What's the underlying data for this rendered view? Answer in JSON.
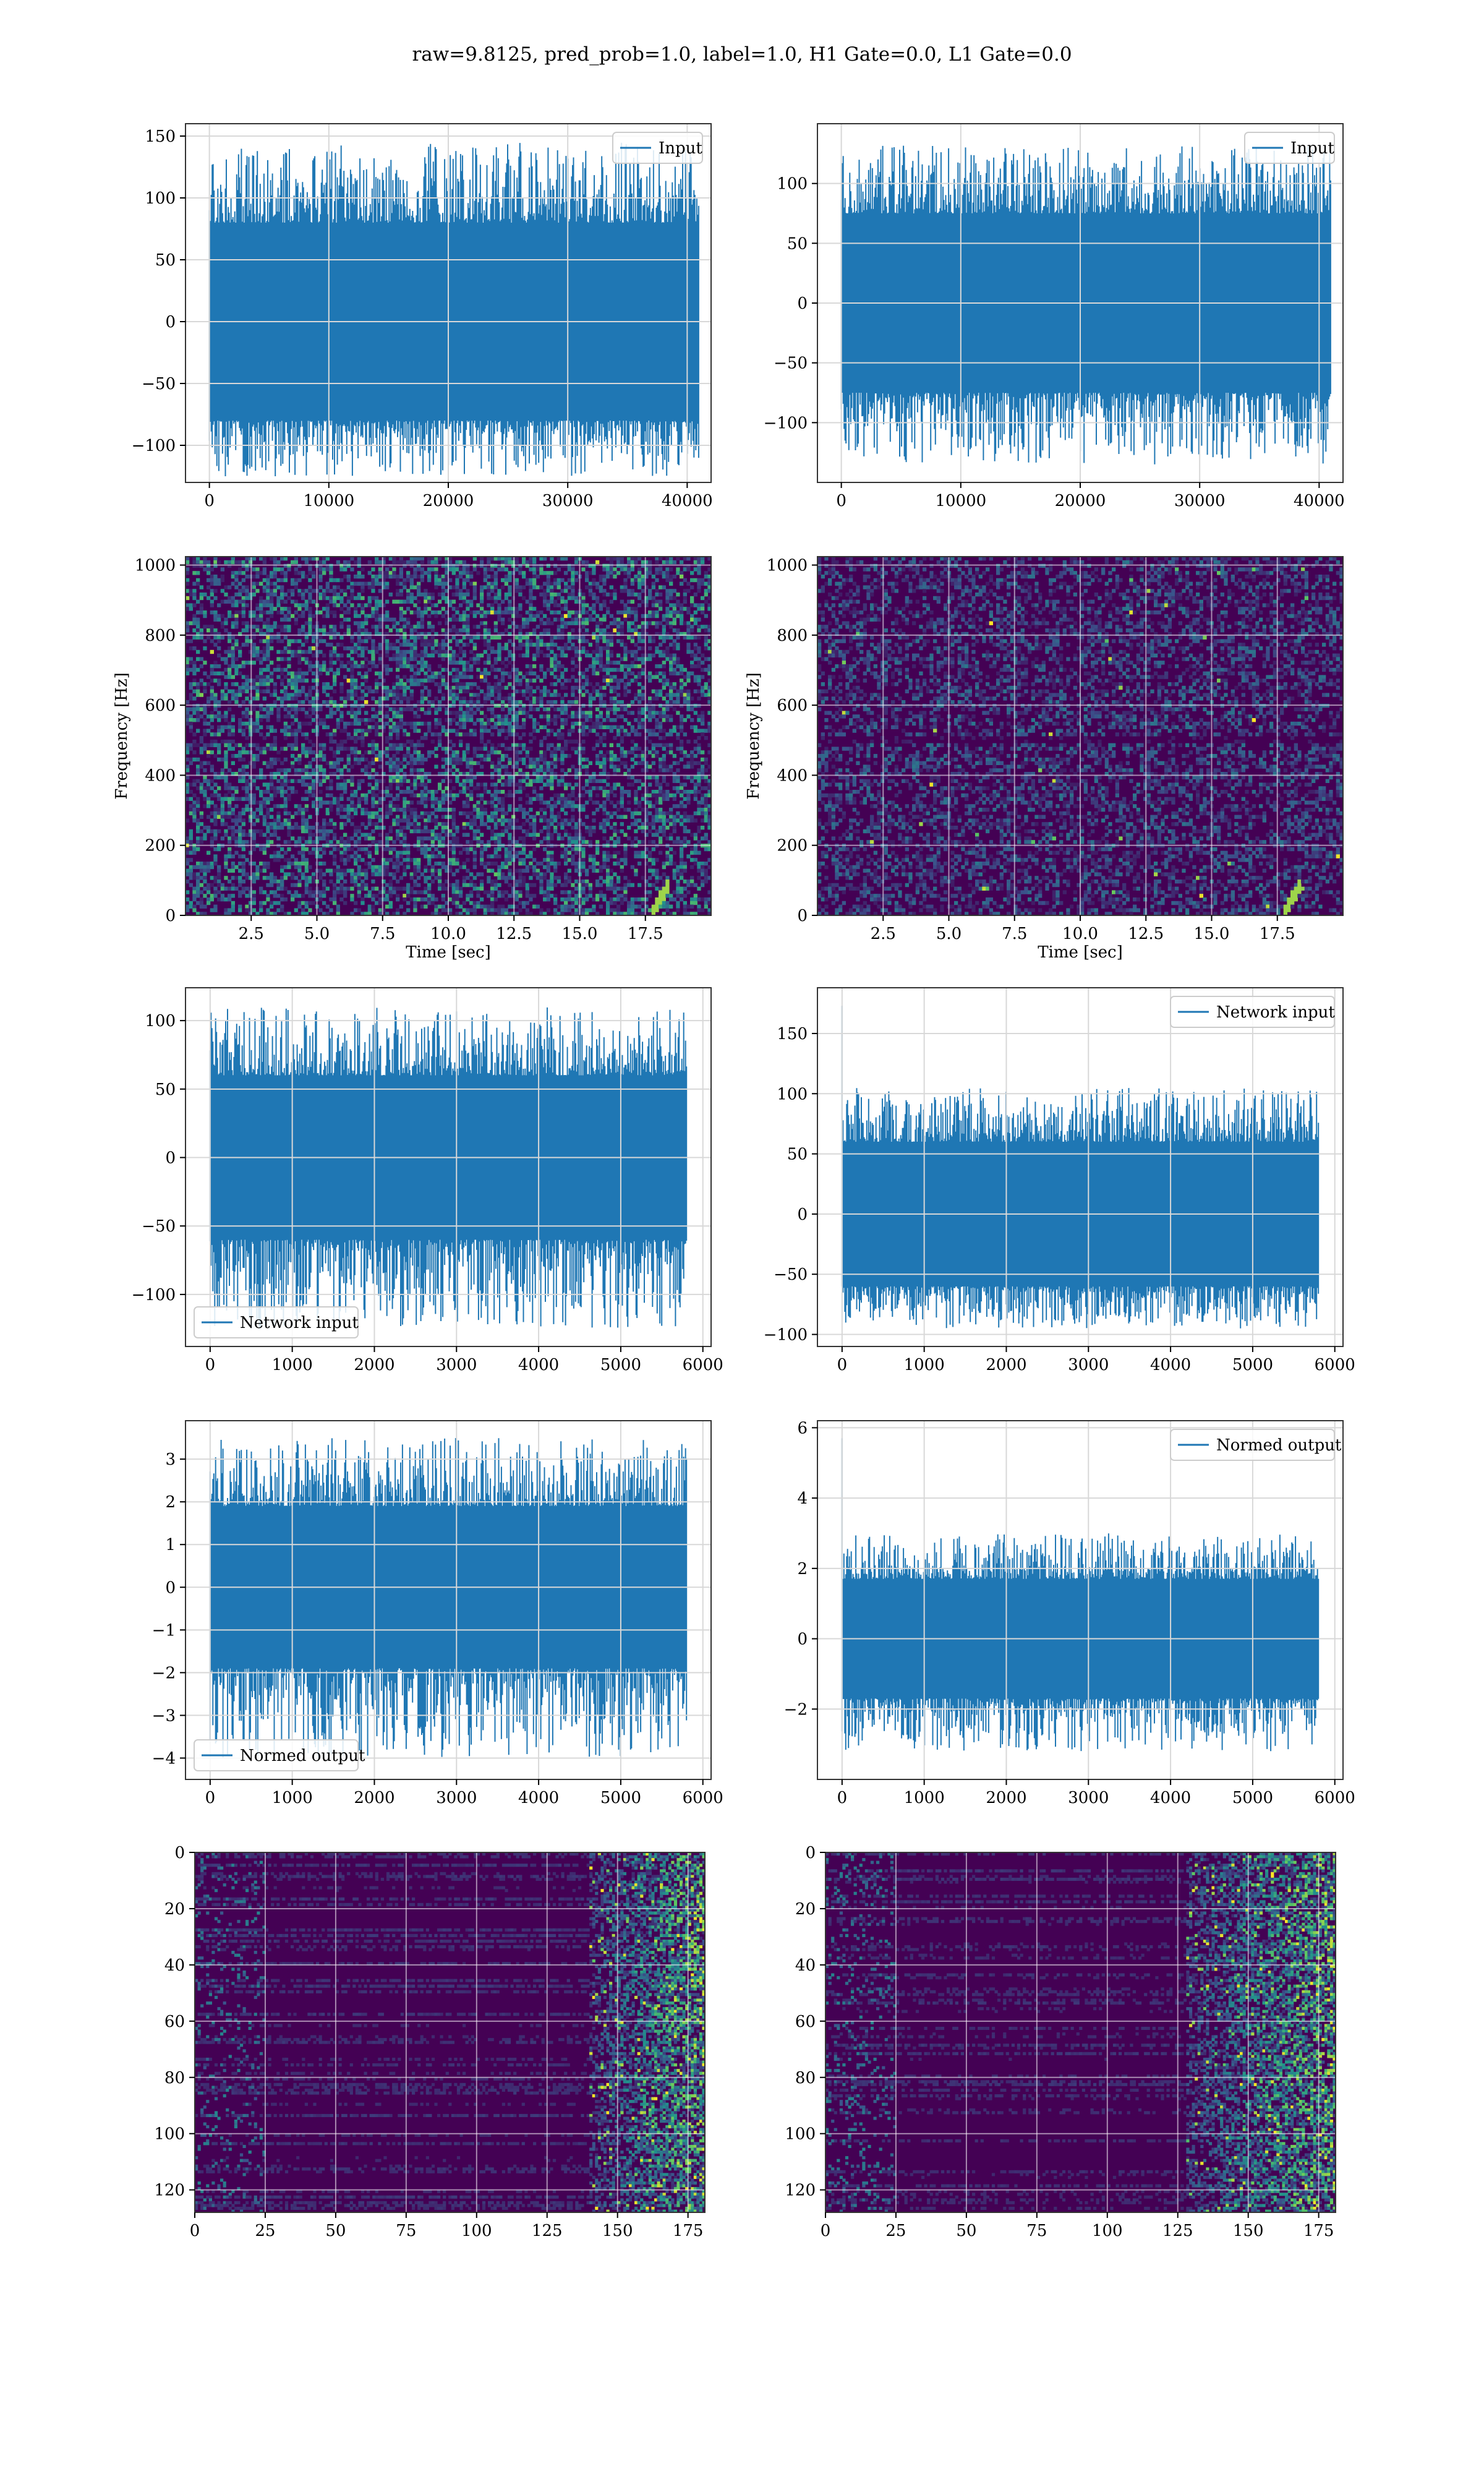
{
  "figure": {
    "suptitle": "raw=9.8125, pred_prob=1.0, label=1.0, H1 Gate=0.0, L1 Gate=0.0"
  },
  "colors": {
    "series": "#1f77b4",
    "grid": "#d8d8d8",
    "viridis_low": "#440154",
    "viridis_mid": "#21918c",
    "viridis_high": "#fde725"
  },
  "chart_data": [
    {
      "id": "h1-input",
      "type": "line",
      "xlim": [
        -2000,
        42000
      ],
      "ylim": [
        -130,
        160
      ],
      "xticks": [
        0,
        10000,
        20000,
        30000,
        40000
      ],
      "yticks": [
        -100,
        -50,
        0,
        50,
        100,
        150
      ],
      "x_range": [
        0,
        40960
      ],
      "band": 80,
      "spike_scale": 145,
      "spike_min": -125,
      "legend": {
        "label": "Input",
        "location": "top-right"
      },
      "grid": true,
      "xlabel": "",
      "ylabel": ""
    },
    {
      "id": "l1-input",
      "type": "line",
      "xlim": [
        -2000,
        42000
      ],
      "ylim": [
        -150,
        150
      ],
      "xticks": [
        0,
        10000,
        20000,
        30000,
        40000
      ],
      "yticks": [
        -100,
        -50,
        0,
        50,
        100
      ],
      "x_range": [
        0,
        40960
      ],
      "band": 75,
      "spike_scale": 132,
      "spike_min": -135,
      "legend": {
        "label": "Input",
        "location": "top-right"
      },
      "grid": true,
      "xlabel": "",
      "ylabel": ""
    },
    {
      "id": "h1-spectrogram",
      "type": "heatmap",
      "xlim": [
        0,
        20
      ],
      "ylim": [
        0,
        1024
      ],
      "xticks": [
        2.5,
        5.0,
        7.5,
        10.0,
        12.5,
        15.0,
        17.5
      ],
      "xticklabels": [
        "2.5",
        "5.0",
        "7.5",
        "10.0",
        "12.5",
        "15.0",
        "17.5"
      ],
      "yticks": [
        0,
        200,
        400,
        600,
        800,
        1000
      ],
      "xlabel": "Time [sec]",
      "ylabel": "Frequency [Hz]",
      "intensity": 0.42,
      "grid": true
    },
    {
      "id": "l1-spectrogram",
      "type": "heatmap",
      "xlim": [
        0,
        20
      ],
      "ylim": [
        0,
        1024
      ],
      "xticks": [
        2.5,
        5.0,
        7.5,
        10.0,
        12.5,
        15.0,
        17.5
      ],
      "xticklabels": [
        "2.5",
        "5.0",
        "7.5",
        "10.0",
        "12.5",
        "15.0",
        "17.5"
      ],
      "yticks": [
        0,
        200,
        400,
        600,
        800,
        1000
      ],
      "xlabel": "Time [sec]",
      "ylabel": "Frequency [Hz]",
      "intensity": 0.25,
      "grid": true
    },
    {
      "id": "h1-network-input",
      "type": "line",
      "xlim": [
        -300,
        6100
      ],
      "ylim": [
        -138,
        124
      ],
      "xticks": [
        0,
        1000,
        2000,
        3000,
        4000,
        5000,
        6000
      ],
      "yticks": [
        -100,
        -50,
        0,
        50,
        100
      ],
      "x_range": [
        0,
        5800
      ],
      "band": 60,
      "spike_scale": 110,
      "spike_min": -125,
      "legend": {
        "label": "Network input",
        "location": "bottom-left"
      },
      "grid": true,
      "xlabel": "",
      "ylabel": ""
    },
    {
      "id": "l1-network-input",
      "type": "line",
      "xlim": [
        -300,
        6100
      ],
      "ylim": [
        -110,
        188
      ],
      "xticks": [
        0,
        1000,
        2000,
        3000,
        4000,
        5000,
        6000
      ],
      "yticks": [
        -100,
        -50,
        0,
        50,
        100,
        150
      ],
      "x_range": [
        0,
        5800
      ],
      "band": 60,
      "spike_scale": 105,
      "spike_min": -95,
      "first_spike": 173,
      "legend": {
        "label": "Network input",
        "location": "top-right"
      },
      "grid": true,
      "xlabel": "",
      "ylabel": ""
    },
    {
      "id": "h1-normed-output",
      "type": "line",
      "xlim": [
        -300,
        6100
      ],
      "ylim": [
        -4.5,
        3.9
      ],
      "xticks": [
        0,
        1000,
        2000,
        3000,
        4000,
        5000,
        6000
      ],
      "yticks": [
        -4,
        -3,
        -2,
        -1,
        0,
        1,
        2,
        3
      ],
      "yticklabels": [
        "−4",
        "−3",
        "−2",
        "−1",
        "0",
        "1",
        "2",
        "3"
      ],
      "x_range": [
        0,
        5800
      ],
      "band": 1.9,
      "spike_scale": 3.5,
      "spike_min": -4.0,
      "legend": {
        "label": "Normed output",
        "location": "bottom-left"
      },
      "grid": true,
      "xlabel": "",
      "ylabel": ""
    },
    {
      "id": "l1-normed-output",
      "type": "line",
      "xlim": [
        -300,
        6100
      ],
      "ylim": [
        -4.0,
        6.2
      ],
      "xticks": [
        0,
        1000,
        2000,
        3000,
        4000,
        5000,
        6000
      ],
      "yticks": [
        -2,
        0,
        2,
        4,
        6
      ],
      "yticklabels": [
        "−2",
        "0",
        "2",
        "4",
        "6"
      ],
      "x_range": [
        0,
        5800
      ],
      "band": 1.7,
      "spike_scale": 3.0,
      "spike_min": -3.2,
      "first_spike": 5.7,
      "legend": {
        "label": "Normed output",
        "location": "top-right"
      },
      "grid": true,
      "xlabel": "",
      "ylabel": ""
    },
    {
      "id": "h1-activations",
      "type": "heatmap",
      "xlim": [
        0,
        181
      ],
      "ylim": [
        128,
        0
      ],
      "xticks": [
        0,
        25,
        50,
        75,
        100,
        125,
        150,
        175
      ],
      "yticks": [
        0,
        20,
        40,
        60,
        80,
        100,
        120
      ],
      "hot_start": 140,
      "grid": true,
      "xlabel": "",
      "ylabel": ""
    },
    {
      "id": "l1-activations",
      "type": "heatmap",
      "xlim": [
        0,
        181
      ],
      "ylim": [
        128,
        0
      ],
      "xticks": [
        0,
        25,
        50,
        75,
        100,
        125,
        150,
        175
      ],
      "yticks": [
        0,
        20,
        40,
        60,
        80,
        100,
        120
      ],
      "hot_start": 128,
      "grid": true,
      "xlabel": "",
      "ylabel": ""
    }
  ]
}
